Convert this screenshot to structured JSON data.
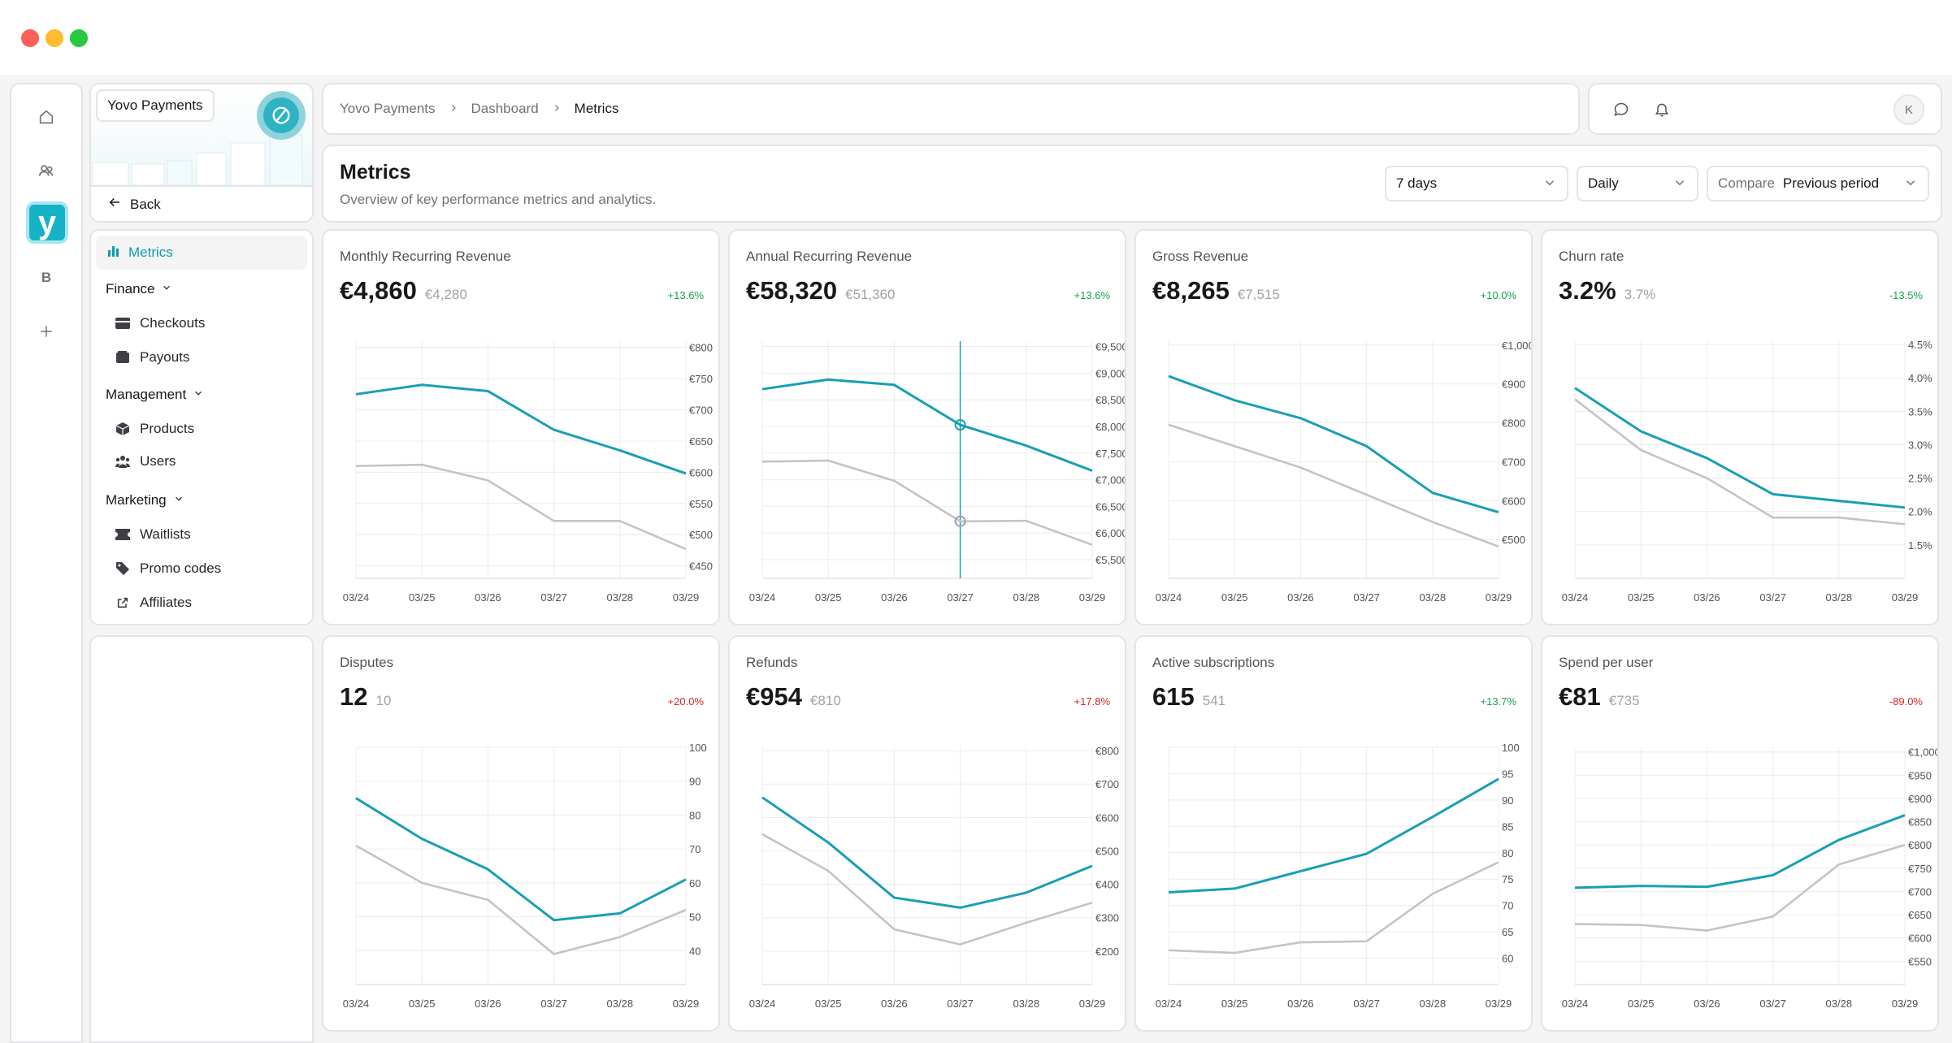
{
  "window": {
    "title": ""
  },
  "rail": {
    "logo": "y",
    "workspace_letter": "B"
  },
  "org": {
    "name": "Yovo Payments",
    "back_label": "Back"
  },
  "nav": {
    "active": "Metrics",
    "groups": [
      {
        "label": "Finance",
        "items": [
          "Checkouts",
          "Payouts"
        ]
      },
      {
        "label": "Management",
        "items": [
          "Products",
          "Users"
        ]
      },
      {
        "label": "Marketing",
        "items": [
          "Waitlists",
          "Promo codes",
          "Affiliates"
        ]
      }
    ]
  },
  "breadcrumb": [
    "Yovo Payments",
    "Dashboard",
    "Metrics"
  ],
  "user": {
    "initial": "K"
  },
  "page": {
    "title": "Metrics",
    "subtitle": "Overview of key performance metrics and analytics."
  },
  "filters": {
    "range": "7 days",
    "interval": "Daily",
    "compare_label": "Compare",
    "compare_value": "Previous period"
  },
  "colors": {
    "accent": "#1a9fb2",
    "previous": "#c4c4c7",
    "positive": "#16a34a",
    "negative": "#dc2626"
  },
  "chart_data": [
    {
      "type": "line",
      "title": "Monthly Recurring Revenue",
      "value": "€4,860",
      "previous": "€4,280",
      "change": "+13.6%",
      "change_sign": "pos",
      "x": [
        "03/24",
        "03/25",
        "03/26",
        "03/27",
        "03/28",
        "03/29"
      ],
      "ylim": [
        430,
        810
      ],
      "yticks": [
        "€800",
        "€750",
        "€700",
        "€650",
        "€600",
        "€550",
        "€500",
        "€450"
      ],
      "ytick_values": [
        800,
        750,
        700,
        650,
        600,
        550,
        500,
        450
      ],
      "series": [
        {
          "values": [
            725,
            740,
            730,
            668,
            635,
            598
          ]
        },
        {
          "values": [
            610,
            612,
            587,
            522,
            522,
            477
          ]
        }
      ]
    },
    {
      "type": "line",
      "title": "Annual Recurring Revenue",
      "value": "€58,320",
      "previous": "€51,360",
      "change": "+13.6%",
      "change_sign": "pos",
      "x": [
        "03/24",
        "03/25",
        "03/26",
        "03/27",
        "03/28",
        "03/29"
      ],
      "ylim": [
        5150,
        9600
      ],
      "yticks": [
        "€9,500",
        "€9,000",
        "€8,500",
        "€8,000",
        "€7,500",
        "€7,000",
        "€6,500",
        "€6,000",
        "€5,500"
      ],
      "ytick_values": [
        9500,
        9000,
        8500,
        8000,
        7500,
        7000,
        6500,
        6000,
        5500
      ],
      "crosshair_index": 3,
      "series": [
        {
          "values": [
            8700,
            8880,
            8780,
            8030,
            7640,
            7170
          ]
        },
        {
          "values": [
            7340,
            7360,
            6980,
            6220,
            6230,
            5780
          ]
        }
      ]
    },
    {
      "type": "line",
      "title": "Gross Revenue",
      "value": "€8,265",
      "previous": "€7,515",
      "change": "+10.0%",
      "change_sign": "pos",
      "x": [
        "03/24",
        "03/25",
        "03/26",
        "03/27",
        "03/28",
        "03/29"
      ],
      "ylim": [
        400,
        1010
      ],
      "yticks": [
        "€1,000",
        "€900",
        "€800",
        "€700",
        "€600",
        "€500"
      ],
      "ytick_values": [
        1000,
        900,
        800,
        700,
        600,
        500
      ],
      "series": [
        {
          "values": [
            920,
            858,
            812,
            740,
            620,
            570
          ]
        },
        {
          "values": [
            795,
            740,
            685,
            615,
            545,
            482
          ]
        }
      ]
    },
    {
      "type": "line",
      "title": "Churn rate",
      "value": "3.2%",
      "previous": "3.7%",
      "change": "-13.5%",
      "change_sign": "pos",
      "x": [
        "03/24",
        "03/25",
        "03/26",
        "03/27",
        "03/28",
        "03/29"
      ],
      "ylim": [
        1.0,
        4.55
      ],
      "yticks": [
        "4.5%",
        "4.0%",
        "3.5%",
        "3.0%",
        "2.5%",
        "2.0%",
        "1.5%"
      ],
      "ytick_values": [
        4.5,
        4.0,
        3.5,
        3.0,
        2.5,
        2.0,
        1.5
      ],
      "series": [
        {
          "values": [
            3.85,
            3.2,
            2.8,
            2.26,
            2.16,
            2.06
          ]
        },
        {
          "values": [
            3.68,
            2.92,
            2.5,
            1.91,
            1.91,
            1.81
          ]
        }
      ]
    },
    {
      "type": "line",
      "title": "Disputes",
      "value": "12",
      "previous": "10",
      "change": "+20.0%",
      "change_sign": "neg",
      "x": [
        "03/24",
        "03/25",
        "03/26",
        "03/27",
        "03/28",
        "03/29"
      ],
      "ylim": [
        30,
        100
      ],
      "yticks": [
        "100",
        "90",
        "80",
        "70",
        "60",
        "50",
        "40"
      ],
      "ytick_values": [
        100,
        90,
        80,
        70,
        60,
        50,
        40
      ],
      "series": [
        {
          "values": [
            85,
            73,
            64,
            49,
            51,
            61
          ]
        },
        {
          "values": [
            71,
            60,
            55,
            39,
            44,
            52
          ]
        }
      ]
    },
    {
      "type": "line",
      "title": "Refunds",
      "value": "€954",
      "previous": "€810",
      "change": "+17.8%",
      "change_sign": "neg",
      "x": [
        "03/24",
        "03/25",
        "03/26",
        "03/27",
        "03/28",
        "03/29"
      ],
      "ylim": [
        100,
        810
      ],
      "yticks": [
        "€800",
        "€700",
        "€600",
        "€500",
        "€400",
        "€300",
        "€200"
      ],
      "ytick_values": [
        800,
        700,
        600,
        500,
        400,
        300,
        200
      ],
      "series": [
        {
          "values": [
            660,
            525,
            360,
            330,
            375,
            455
          ]
        },
        {
          "values": [
            550,
            440,
            265,
            220,
            285,
            345
          ]
        }
      ]
    },
    {
      "type": "line",
      "title": "Active subscriptions",
      "value": "615",
      "previous": "541",
      "change": "+13.7%",
      "change_sign": "pos",
      "x": [
        "03/24",
        "03/25",
        "03/26",
        "03/27",
        "03/28",
        "03/29"
      ],
      "ylim": [
        55,
        100
      ],
      "yticks": [
        "100",
        "95",
        "90",
        "85",
        "80",
        "75",
        "70",
        "65",
        "60"
      ],
      "ytick_values": [
        100,
        95,
        90,
        85,
        80,
        75,
        70,
        65,
        60
      ],
      "series": [
        {
          "values": [
            72.5,
            73.2,
            76.5,
            79.8,
            86.8,
            94
          ]
        },
        {
          "values": [
            61.5,
            61,
            63,
            63.2,
            72.2,
            78.2
          ]
        }
      ]
    },
    {
      "type": "line",
      "title": "Spend per user",
      "value": "€81",
      "previous": "€735",
      "change": "-89.0%",
      "change_sign": "neg",
      "x": [
        "03/24",
        "03/25",
        "03/26",
        "03/27",
        "03/28",
        "03/29"
      ],
      "ylim": [
        500,
        1010
      ],
      "yticks": [
        "€1,000",
        "€950",
        "€900",
        "€850",
        "€800",
        "€750",
        "€700",
        "€650",
        "€600",
        "€550"
      ],
      "ytick_values": [
        1000,
        950,
        900,
        850,
        800,
        750,
        700,
        650,
        600,
        550
      ],
      "series": [
        {
          "values": [
            708,
            712,
            710,
            735,
            811,
            864
          ]
        },
        {
          "values": [
            630,
            628,
            616,
            646,
            758,
            800
          ]
        }
      ]
    }
  ]
}
